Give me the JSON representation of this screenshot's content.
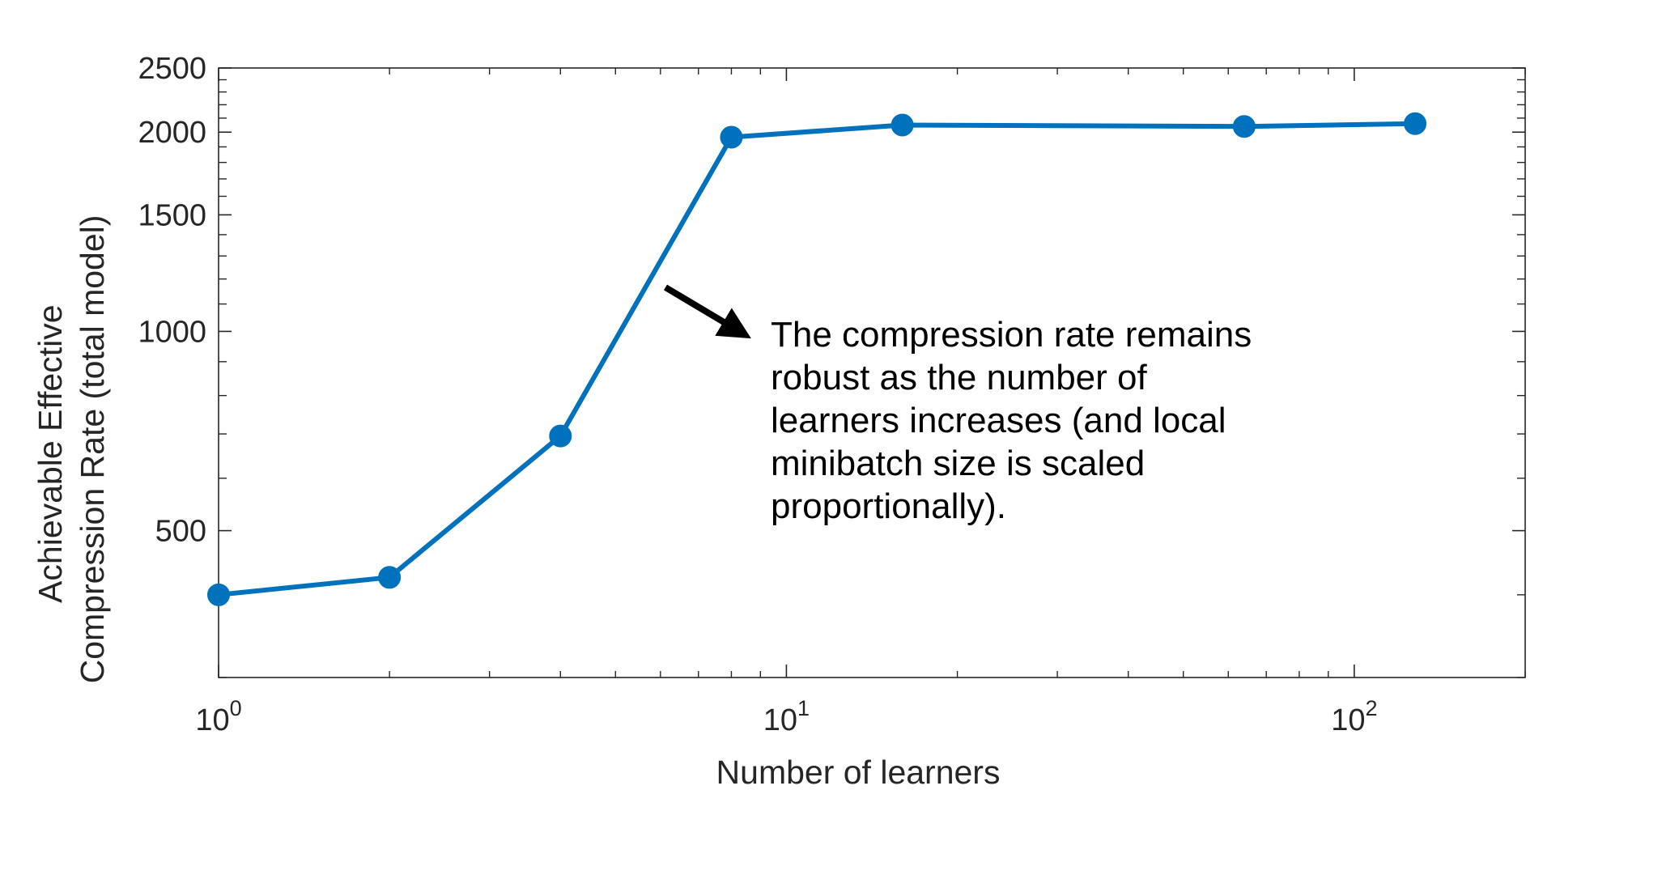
{
  "chart_data": {
    "type": "line",
    "title": "",
    "xlabel": "Number of learners",
    "ylabel": [
      "Achievable Effective",
      "Compression Rate (total model)"
    ],
    "xscale": "log",
    "yscale": "log",
    "xlim": [
      1,
      200
    ],
    "ylim": [
      300,
      2500
    ],
    "x_ticks": [
      {
        "value": 1,
        "base": "10",
        "exp": "0"
      },
      {
        "value": 10,
        "base": "10",
        "exp": "1"
      },
      {
        "value": 100,
        "base": "10",
        "exp": "2"
      }
    ],
    "y_ticks": [
      {
        "value": 500,
        "label": "500"
      },
      {
        "value": 1000,
        "label": "1000"
      },
      {
        "value": 1500,
        "label": "1500"
      },
      {
        "value": 2000,
        "label": "2000"
      },
      {
        "value": 2500,
        "label": "2500"
      }
    ],
    "grid": false,
    "series": [
      {
        "x": [
          1,
          2,
          4,
          8,
          16,
          64,
          128
        ],
        "y": [
          400,
          425,
          695,
          1965,
          2050,
          2040,
          2060
        ],
        "color": "#0072BD"
      }
    ],
    "annotation": {
      "lines": [
        "The compression rate remains",
        "robust as the number of",
        "learners increases (and local",
        "minibatch size is scaled",
        "proportionally)."
      ]
    }
  }
}
